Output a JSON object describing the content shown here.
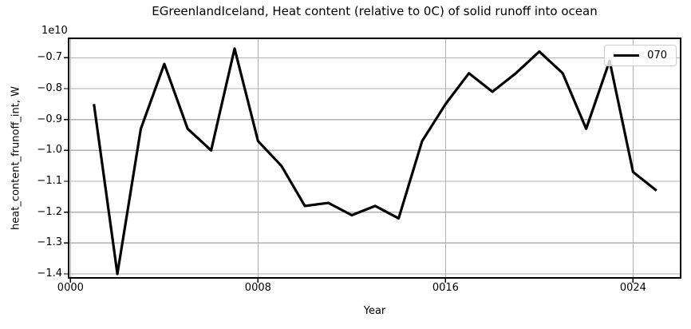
{
  "chart_data": {
    "type": "line",
    "title": "EGreenlandIceland, Heat content (relative to 0C) of solid runoff into ocean",
    "xlabel": "Year",
    "ylabel": "heat_content_frunoff_int, W",
    "offset_text": "1e10",
    "values_unit": "1e10 W",
    "x": [
      1,
      2,
      3,
      4,
      5,
      6,
      7,
      8,
      9,
      10,
      11,
      12,
      13,
      14,
      15,
      16,
      17,
      18,
      19,
      20,
      21,
      22,
      23,
      24,
      25
    ],
    "series": [
      {
        "name": "070",
        "color": "#000000",
        "linewidth": 3.2,
        "values": [
          -0.85,
          -1.4,
          -0.93,
          -0.72,
          -0.93,
          -1.0,
          -0.67,
          -0.97,
          -1.05,
          -1.18,
          -1.17,
          -1.21,
          -1.18,
          -1.22,
          -0.97,
          -0.85,
          -0.75,
          -0.81,
          -0.75,
          -0.68,
          -0.75,
          -0.93,
          -0.71,
          -1.07,
          -1.13
        ]
      }
    ],
    "xlim": [
      -0.08,
      26.03
    ],
    "ylim": [
      -1.413,
      -0.637
    ],
    "xticks": {
      "values": [
        0,
        8,
        16,
        24
      ],
      "labels": [
        "0000",
        "0008",
        "0016",
        "0024"
      ]
    },
    "yticks": {
      "values": [
        -0.7,
        -0.8,
        -0.9,
        -1.0,
        -1.1,
        -1.2,
        -1.3,
        -1.4
      ],
      "labels": [
        "−0.7",
        "−0.8",
        "−0.9",
        "−1.0",
        "−1.1",
        "−1.2",
        "−1.3",
        "−1.4"
      ]
    },
    "grid": true,
    "legend": {
      "position": "upper right",
      "labels": [
        "070"
      ]
    },
    "colors": {
      "line": "#000000",
      "grid": "#b0b0b0",
      "spine": "#000000",
      "background": "#ffffff",
      "legend_border": "#cccccc"
    }
  }
}
